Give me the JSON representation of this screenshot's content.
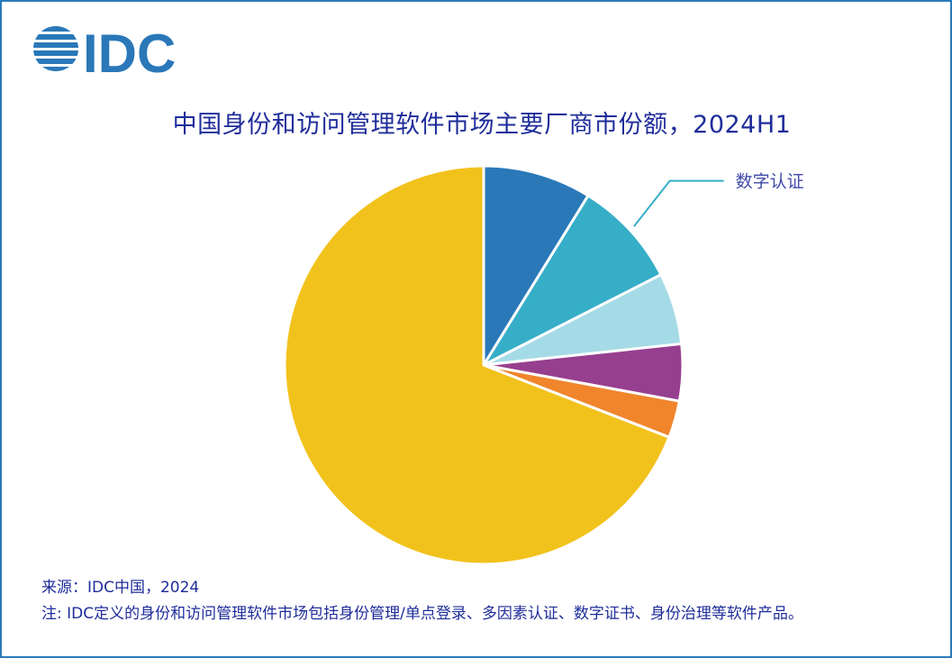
{
  "logo": {
    "text": "IDC"
  },
  "chart_data": {
    "type": "pie",
    "title": "中国身份和访问管理软件市场主要厂商市份额，2024H1",
    "slices": [
      {
        "label": "",
        "value": 8.8,
        "color": "#2a78b8"
      },
      {
        "label": "数字认证",
        "value": 8.7,
        "color": "#36aec8"
      },
      {
        "label": "",
        "value": 5.8,
        "color": "#a5dbe6"
      },
      {
        "label": "",
        "value": 4.6,
        "color": "#973f8f"
      },
      {
        "label": "",
        "value": 3.0,
        "color": "#f0852b"
      },
      {
        "label": "",
        "value": 69.1,
        "color": "#f2c21c"
      }
    ]
  },
  "footer": {
    "source": "来源：IDC中国，2024",
    "note": "注: IDC定义的身份和访问管理软件市场包括身份管理/单点登录、多因素认证、数字证书、身份治理等软件产品。"
  }
}
